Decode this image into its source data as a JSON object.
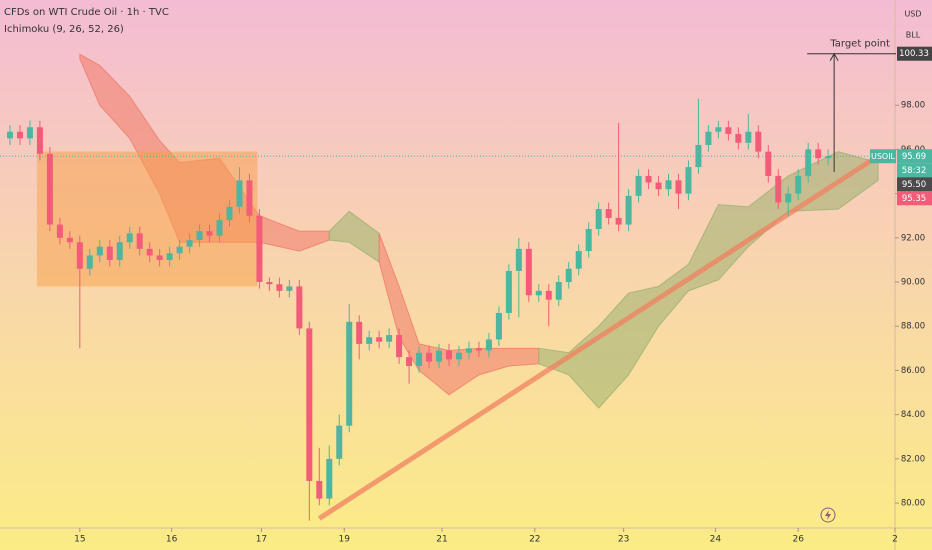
{
  "chart_data": {
    "type": "candlestick",
    "title": "CFDs on WTI Crude Oil · 1h · TVC",
    "subtitle": "Ichimoku (9, 26, 52, 26)",
    "currency": "USD",
    "unit": "BLL",
    "symbol": "USOIL",
    "countdown": "58:32",
    "up_color": "#4db6a0",
    "down_color": "#f25c78",
    "x": [
      1,
      2,
      3,
      4,
      5,
      6,
      7,
      8,
      9,
      10,
      11,
      12,
      13,
      14,
      15,
      16,
      17,
      18,
      19,
      20,
      21,
      22,
      23,
      24,
      25,
      26,
      27,
      28,
      29,
      30,
      31,
      32,
      33,
      34,
      35,
      36,
      37,
      38,
      39,
      40,
      41,
      42,
      43,
      44,
      45,
      46,
      47,
      48,
      49,
      50,
      51,
      52,
      53,
      54,
      55,
      56,
      57,
      58,
      59,
      60,
      61,
      62,
      63,
      64,
      65,
      66,
      67,
      68,
      69,
      70,
      71,
      72,
      73,
      74,
      75,
      76,
      77,
      78,
      79,
      80,
      81,
      82,
      83
    ],
    "open": [
      96.5,
      96.8,
      96.5,
      97.0,
      95.8,
      92.6,
      92.0,
      91.8,
      90.6,
      91.2,
      91.6,
      91.0,
      91.8,
      92.2,
      91.5,
      91.2,
      91.0,
      91.3,
      91.6,
      91.9,
      92.3,
      92.1,
      92.8,
      93.4,
      94.6,
      93.0,
      90.0,
      89.9,
      89.6,
      89.8,
      87.9,
      81.0,
      80.2,
      82.0,
      83.5,
      88.2,
      87.2,
      87.5,
      87.3,
      87.6,
      86.6,
      86.2,
      86.8,
      86.4,
      86.9,
      86.5,
      86.8,
      87.0,
      86.9,
      87.4,
      88.6,
      90.5,
      91.5,
      89.4,
      89.6,
      89.2,
      90.0,
      90.6,
      91.4,
      92.4,
      93.3,
      92.9,
      92.6,
      93.9,
      94.8,
      94.5,
      94.2,
      94.6,
      94.0,
      95.2,
      96.2,
      96.8,
      97.0,
      96.7,
      96.3,
      96.8,
      95.9,
      94.8,
      93.6,
      94.0,
      94.8,
      96.0,
      95.6
    ],
    "high": [
      97.1,
      97.1,
      97.3,
      97.3,
      96.1,
      92.9,
      92.3,
      92.1,
      91.5,
      91.9,
      91.9,
      92.1,
      92.5,
      92.5,
      91.8,
      91.5,
      91.6,
      91.9,
      92.2,
      92.6,
      92.6,
      93.1,
      93.7,
      95.2,
      94.9,
      93.3,
      90.2,
      90.2,
      90.1,
      90.1,
      88.2,
      82.5,
      82.6,
      84.0,
      89.0,
      88.5,
      87.8,
      87.8,
      87.9,
      87.9,
      86.9,
      87.1,
      87.1,
      87.2,
      87.2,
      87.1,
      87.3,
      87.3,
      87.7,
      88.9,
      90.8,
      92.0,
      91.8,
      89.9,
      89.9,
      90.3,
      90.9,
      91.7,
      92.7,
      93.6,
      93.6,
      97.2,
      94.2,
      95.1,
      95.1,
      94.8,
      94.9,
      94.9,
      95.5,
      98.3,
      97.1,
      97.3,
      97.3,
      97.0,
      97.6,
      97.1,
      96.2,
      95.1,
      94.3,
      95.1,
      96.3,
      96.3,
      96.0
    ],
    "low": [
      96.2,
      96.2,
      96.2,
      95.5,
      92.3,
      91.7,
      91.5,
      87.0,
      90.3,
      90.9,
      90.7,
      90.7,
      91.5,
      91.2,
      90.9,
      90.7,
      90.7,
      91.0,
      91.3,
      91.6,
      91.8,
      91.8,
      92.5,
      93.1,
      92.7,
      89.7,
      89.6,
      89.3,
      89.3,
      87.6,
      79.2,
      79.9,
      79.9,
      81.7,
      83.2,
      86.5,
      86.9,
      87.0,
      87.0,
      86.3,
      85.4,
      85.9,
      86.1,
      86.1,
      86.2,
      86.2,
      86.5,
      86.6,
      86.6,
      87.1,
      88.3,
      88.4,
      89.1,
      89.1,
      88.0,
      88.9,
      89.7,
      90.3,
      91.1,
      92.1,
      92.6,
      92.3,
      92.3,
      93.6,
      94.2,
      93.9,
      93.9,
      93.3,
      93.7,
      94.9,
      95.9,
      96.5,
      96.4,
      96.0,
      96.0,
      95.6,
      94.5,
      93.3,
      93.0,
      93.7,
      94.5,
      95.3,
      95.3
    ],
    "close": [
      96.8,
      96.5,
      97.0,
      95.8,
      92.6,
      92.0,
      91.8,
      90.6,
      91.2,
      91.6,
      91.0,
      91.8,
      92.2,
      91.5,
      91.2,
      91.0,
      91.3,
      91.6,
      91.9,
      92.3,
      92.1,
      92.8,
      93.4,
      94.6,
      93.0,
      90.0,
      89.9,
      89.6,
      89.8,
      87.9,
      81.0,
      80.2,
      82.0,
      83.5,
      88.2,
      87.2,
      87.5,
      87.3,
      87.6,
      86.6,
      86.2,
      86.8,
      86.4,
      86.9,
      86.5,
      86.8,
      87.0,
      86.9,
      87.4,
      88.6,
      90.5,
      91.5,
      89.4,
      89.6,
      89.2,
      90.0,
      90.6,
      91.4,
      92.4,
      93.3,
      92.9,
      92.6,
      93.9,
      94.8,
      94.5,
      94.2,
      94.6,
      94.0,
      95.2,
      96.2,
      96.8,
      97.0,
      96.7,
      96.3,
      96.8,
      95.9,
      94.8,
      93.6,
      94.0,
      94.8,
      96.0,
      95.6,
      95.7
    ],
    "clouds": [
      {
        "color": "#f07a6a",
        "x": [
          8,
          10,
          13,
          16,
          18,
          22,
          26,
          30,
          33
        ],
        "upper": [
          100.3,
          99.8,
          98.4,
          96.4,
          95.4,
          95.6,
          93.0,
          92.3,
          92.3
        ],
        "lower": [
          100.1,
          98.0,
          96.5,
          94.0,
          91.8,
          91.8,
          91.8,
          91.4,
          91.9
        ]
      },
      {
        "color": "#9cb070",
        "x": [
          33,
          35,
          38
        ],
        "upper": [
          92.3,
          93.2,
          92.2
        ],
        "lower": [
          91.9,
          91.8,
          90.9
        ]
      },
      {
        "color": "#f07a6a",
        "x": [
          38,
          40,
          42,
          45,
          48,
          51,
          54
        ],
        "upper": [
          92.2,
          89.8,
          87.2,
          86.9,
          87.0,
          87.0,
          87.0
        ],
        "lower": [
          90.9,
          87.5,
          86.0,
          84.9,
          85.8,
          86.2,
          86.3
        ]
      },
      {
        "color": "#9cb070",
        "x": [
          54,
          57,
          60,
          63,
          66,
          69,
          72,
          75,
          79,
          84,
          88
        ],
        "upper": [
          87.0,
          86.8,
          88.0,
          89.5,
          89.8,
          90.8,
          93.5,
          93.4,
          94.8,
          95.9,
          95.4
        ],
        "lower": [
          86.3,
          85.8,
          84.3,
          85.8,
          88.0,
          89.6,
          90.1,
          91.6,
          93.2,
          93.3,
          94.6
        ]
      }
    ],
    "box": {
      "color": "#f7a04a",
      "x": [
        3.7,
        25.8
      ],
      "y": [
        89.8,
        95.9
      ]
    },
    "trendline": {
      "color": "#f08060",
      "x": [
        32,
        88
      ],
      "y": [
        79.3,
        95.7
      ]
    },
    "target": {
      "label": "Target point",
      "x": 83.6,
      "from": 94.98,
      "to": 100.33
    },
    "price_labels": [
      {
        "value": 100.33,
        "label": "100.33",
        "color": "#444444"
      },
      {
        "value": 95.69,
        "label": "95.69",
        "color": "#4db6a0"
      },
      {
        "value": 95.5,
        "label": "95.50",
        "color": "#4a4a4a"
      },
      {
        "value": 95.35,
        "label": "95.35",
        "color": "#f25c78"
      }
    ],
    "xlim": [
      0,
      89.8
    ],
    "ylim": [
      78.87,
      102.76
    ],
    "xticks": [
      {
        "value": 8,
        "label": "15"
      },
      {
        "value": 17.2,
        "label": "16"
      },
      {
        "value": 26.2,
        "label": "17"
      },
      {
        "value": 34.5,
        "label": "19"
      },
      {
        "value": 44.3,
        "label": "21"
      },
      {
        "value": 53.6,
        "label": "22"
      },
      {
        "value": 62.5,
        "label": "23"
      },
      {
        "value": 71.7,
        "label": "24"
      },
      {
        "value": 80,
        "label": "26"
      },
      {
        "value": 89.7,
        "label": "2"
      }
    ],
    "yticks": [
      {
        "value": 80,
        "label": "80.00"
      },
      {
        "value": 82,
        "label": "82.00"
      },
      {
        "value": 84,
        "label": "84.00"
      },
      {
        "value": 86,
        "label": "86.00"
      },
      {
        "value": 88,
        "label": "88.00"
      },
      {
        "value": 90,
        "label": "90.00"
      },
      {
        "value": 92,
        "label": "92.00"
      },
      {
        "value": 94,
        "label": "94.00"
      },
      {
        "value": 96,
        "label": "96.00"
      },
      {
        "value": 98,
        "label": "98.00"
      }
    ]
  }
}
